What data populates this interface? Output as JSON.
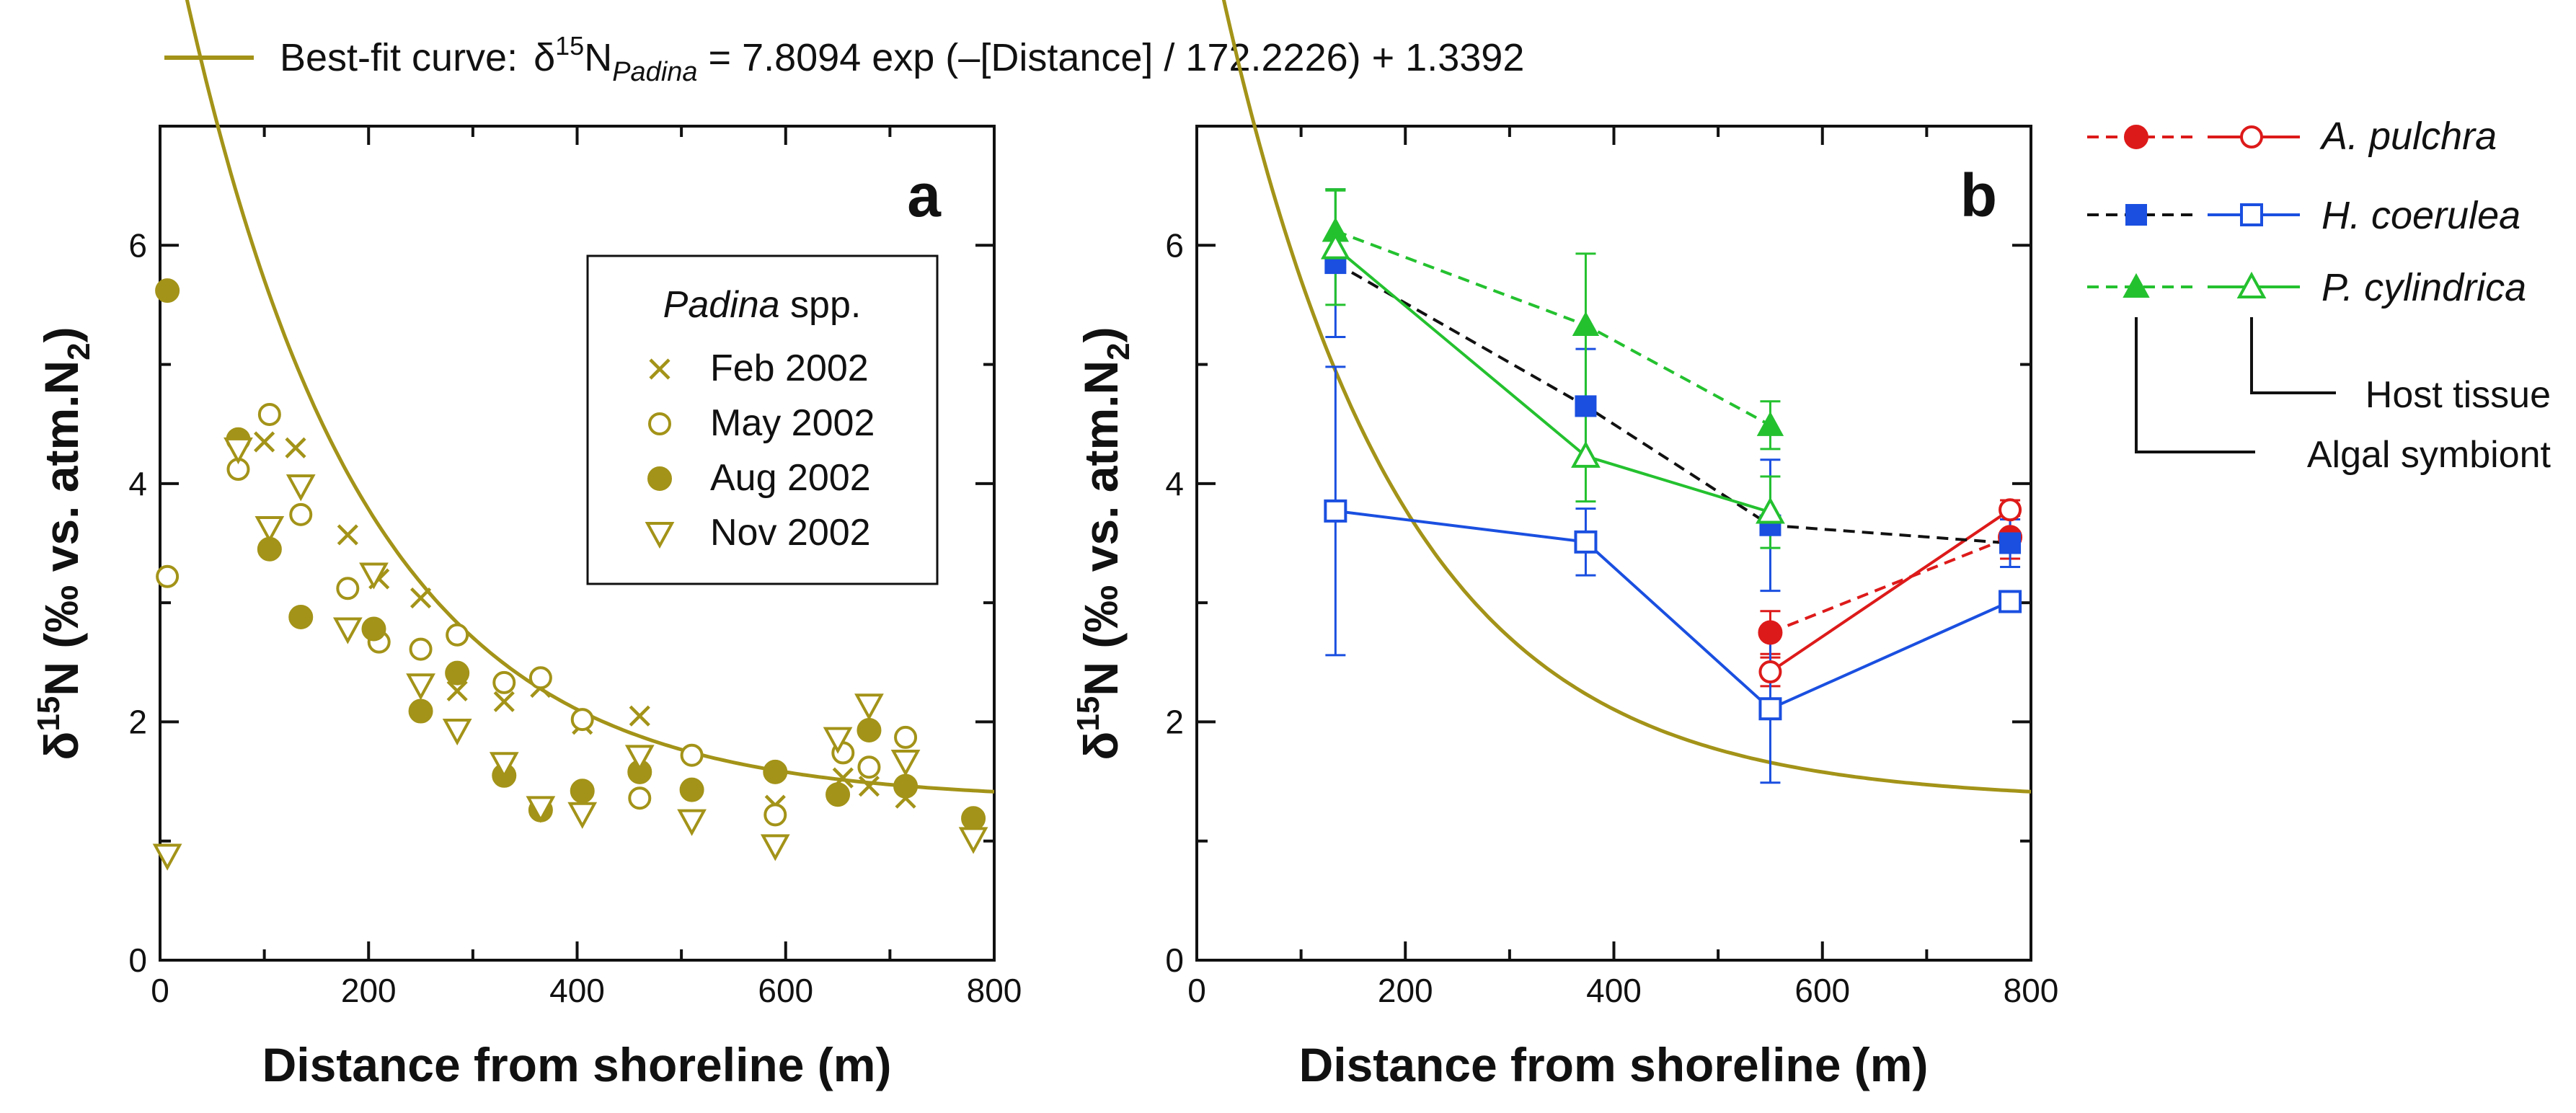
{
  "header": {
    "legend_label": "Best-fit curve:",
    "formula_delta": "δ",
    "formula_sup": "15",
    "formula_n": "N",
    "formula_sub": "Padina",
    "formula_rhs": " =  7.8094 exp (–[Distance] / 172.2226) + 1.3392",
    "curve_color": "#A39318",
    "curve_params": {
      "a": 7.8094,
      "b": 172.2226,
      "c": 1.3392
    }
  },
  "panel_a": {
    "letter": "a",
    "legend_title": "Padina",
    "legend_title_suffix": " spp.",
    "legend_items": [
      "Feb 2002",
      "May 2002",
      "Aug 2002",
      "Nov 2002"
    ],
    "xlabel": "Distance from shoreline (m)",
    "ylabel_delta": "δ",
    "ylabel_sup": "15",
    "ylabel_rest": "N (‰ vs. atm.N",
    "ylabel_sub": "2",
    "ylabel_close": ")",
    "xticks": [
      "0",
      "200",
      "400",
      "600",
      "800"
    ],
    "yticks": [
      "0",
      "2",
      "4",
      "6"
    ]
  },
  "panel_b": {
    "letter": "b",
    "xlabel": "Distance from shoreline (m)",
    "ylabel_delta": "δ",
    "ylabel_sup": "15",
    "ylabel_rest": "N (‰ vs. atm.N",
    "ylabel_sub": "2",
    "ylabel_close": ")",
    "xticks": [
      "0",
      "200",
      "400",
      "600",
      "800"
    ],
    "yticks": [
      "0",
      "2",
      "4",
      "6"
    ]
  },
  "legend_b": {
    "species": [
      "A. pulchra",
      "H. coerulea",
      "P. cylindrica"
    ],
    "host_label": "Host tissue",
    "symbiont_label": "Algal symbiont"
  },
  "chart_data": [
    {
      "type": "scatter",
      "panel": "a",
      "title": "",
      "xlabel": "Distance from shoreline (m)",
      "ylabel": "δ15N (‰ vs. atm.N2)",
      "xlim": [
        0,
        800
      ],
      "ylim": [
        0,
        7
      ],
      "grid": false,
      "legend_position": "top-right",
      "series": [
        {
          "name": "Feb 2002",
          "marker": "x",
          "color": "#A39318",
          "points": [
            [
              100,
              4.35
            ],
            [
              130,
              4.3
            ],
            [
              180,
              3.57
            ],
            [
              210,
              3.2
            ],
            [
              250,
              3.04
            ],
            [
              285,
              2.26
            ],
            [
              330,
              2.17
            ],
            [
              365,
              2.29
            ],
            [
              405,
              1.98
            ],
            [
              460,
              2.05
            ],
            [
              590,
              1.3
            ],
            [
              655,
              1.53
            ],
            [
              680,
              1.46
            ],
            [
              715,
              1.36
            ]
          ]
        },
        {
          "name": "May 2002",
          "marker": "circle-open",
          "color": "#A39318",
          "points": [
            [
              7,
              3.22
            ],
            [
              75,
              4.12
            ],
            [
              105,
              4.58
            ],
            [
              135,
              3.74
            ],
            [
              180,
              3.12
            ],
            [
              210,
              2.67
            ],
            [
              250,
              2.61
            ],
            [
              285,
              2.73
            ],
            [
              330,
              2.33
            ],
            [
              365,
              2.37
            ],
            [
              405,
              2.02
            ],
            [
              460,
              1.36
            ],
            [
              510,
              1.72
            ],
            [
              590,
              1.22
            ],
            [
              655,
              1.74
            ],
            [
              680,
              1.62
            ],
            [
              715,
              1.87
            ]
          ]
        },
        {
          "name": "Aug 2002",
          "marker": "circle-filled",
          "color": "#A39318",
          "points": [
            [
              7,
              5.62
            ],
            [
              75,
              4.37
            ],
            [
              105,
              3.45
            ],
            [
              135,
              2.88
            ],
            [
              205,
              2.78
            ],
            [
              250,
              2.09
            ],
            [
              285,
              2.41
            ],
            [
              330,
              1.55
            ],
            [
              365,
              1.26
            ],
            [
              405,
              1.42
            ],
            [
              460,
              1.58
            ],
            [
              510,
              1.43
            ],
            [
              590,
              1.58
            ],
            [
              650,
              1.39
            ],
            [
              680,
              1.93
            ],
            [
              715,
              1.46
            ],
            [
              780,
              1.19
            ]
          ]
        },
        {
          "name": "Nov 2002",
          "marker": "triangle-down-open",
          "color": "#A39318",
          "points": [
            [
              7,
              0.88
            ],
            [
              75,
              4.29
            ],
            [
              105,
              3.63
            ],
            [
              135,
              3.98
            ],
            [
              180,
              2.78
            ],
            [
              205,
              3.24
            ],
            [
              250,
              2.31
            ],
            [
              285,
              1.93
            ],
            [
              330,
              1.65
            ],
            [
              365,
              1.28
            ],
            [
              405,
              1.23
            ],
            [
              460,
              1.71
            ],
            [
              510,
              1.17
            ],
            [
              590,
              0.96
            ],
            [
              650,
              1.86
            ],
            [
              680,
              2.14
            ],
            [
              715,
              1.67
            ],
            [
              780,
              1.02
            ]
          ]
        }
      ],
      "curve": {
        "name": "Best-fit curve",
        "equation": "7.8094 exp (–[Distance] / 172.2226) + 1.3392"
      }
    },
    {
      "type": "line",
      "panel": "b",
      "title": "",
      "xlabel": "Distance from shoreline (m)",
      "ylabel": "δ15N (‰ vs. atm.N2)",
      "xlim": [
        0,
        800
      ],
      "ylim": [
        0,
        7
      ],
      "grid": false,
      "legend_position": "outside-right",
      "series": [
        {
          "name": "A. pulchra algal symbiont",
          "color": "#DD1A1A",
          "dashed": true,
          "marker": "circle-filled",
          "x": [
            550,
            780
          ],
          "y": [
            2.75,
            3.55
          ],
          "err": [
            0.18,
            0.18
          ]
        },
        {
          "name": "A. pulchra host tissue",
          "color": "#DD1A1A",
          "dashed": false,
          "marker": "circle-open",
          "x": [
            550,
            780
          ],
          "y": [
            2.42,
            3.78
          ],
          "err": [
            0.12,
            0.08
          ]
        },
        {
          "name": "H. coerulea algal symbiont",
          "color": "#111111",
          "dashed": true,
          "marker": "square-filled",
          "x": [
            133,
            373,
            550,
            780
          ],
          "y": [
            5.85,
            4.65,
            3.65,
            3.5
          ],
          "err": [
            0.62,
            0.48,
            0.55,
            0.2
          ]
        },
        {
          "name": "H. coerulea host tissue",
          "color": "#1A4FE0",
          "dashed": false,
          "marker": "square-open",
          "x": [
            133,
            373,
            550,
            780
          ],
          "y": [
            3.77,
            3.51,
            2.11,
            3.01
          ],
          "err": [
            1.21,
            0.28,
            0.62,
            0.0
          ]
        },
        {
          "name": "P. cylindrica algal symbiont",
          "color": "#24C12F",
          "dashed": true,
          "marker": "triangle-up-filled",
          "x": [
            133,
            373,
            550
          ],
          "y": [
            6.12,
            5.33,
            4.49
          ],
          "err": [
            0.35,
            0.6,
            0.2
          ]
        },
        {
          "name": "P. cylindrica host tissue",
          "color": "#24C12F",
          "dashed": false,
          "marker": "triangle-up-open",
          "x": [
            133,
            373,
            550
          ],
          "y": [
            5.98,
            4.23,
            3.76
          ],
          "err": [
            0.48,
            0.38,
            0.3
          ]
        }
      ],
      "curve": {
        "name": "Best-fit curve",
        "equation": "7.8094 exp (–[Distance] / 172.2226) + 1.3392"
      }
    }
  ]
}
